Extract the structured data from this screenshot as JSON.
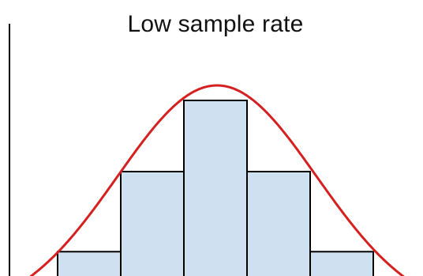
{
  "title": "Low sample rate",
  "colors": {
    "bar_fill": "#cfe0f1",
    "bar_stroke": "#000000",
    "curve": "#d42020",
    "axis": "#000000",
    "background": "#ffffff"
  },
  "samples": [
    {
      "label": "",
      "level": 0.15
    },
    {
      "label": "",
      "level": 0.6
    },
    {
      "label": "",
      "level": 1.0
    },
    {
      "label": "",
      "level": 0.6
    },
    {
      "label": "",
      "level": 0.15
    }
  ]
}
